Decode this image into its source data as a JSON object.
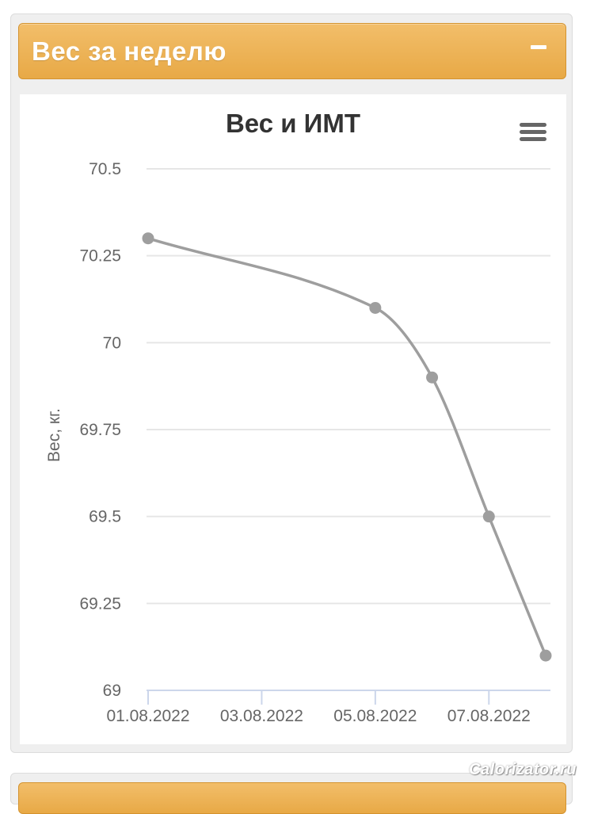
{
  "panel": {
    "title": "Вес за неделю",
    "collapse_icon": "minus-icon"
  },
  "chart_menu_icon": "hamburger-menu-icon",
  "watermark": "Calorizator.ru",
  "colors": {
    "header": "#eeb256",
    "line": "#9e9e9e",
    "grid": "#e6e6e6"
  },
  "chart_data": {
    "type": "line",
    "title": "Вес и ИМТ",
    "xlabel": "",
    "ylabel": "Вес, кг.",
    "x_ticks": [
      "01.08.2022",
      "03.08.2022",
      "05.08.2022",
      "07.08.2022"
    ],
    "xlim": [
      "01.08.2022",
      "08.08.2022"
    ],
    "ylim": [
      69,
      70.5
    ],
    "y_ticks": [
      69,
      69.25,
      69.5,
      69.75,
      70,
      70.25,
      70.5
    ],
    "y_tick_labels": [
      "69",
      "69.25",
      "69.5",
      "69.75",
      "70",
      "70.25",
      "70.5"
    ],
    "smooth": true,
    "grid": true,
    "legend": "none",
    "series": [
      {
        "x": [
          "01.08.2022",
          "05.08.2022",
          "06.08.2022",
          "07.08.2022",
          "08.08.2022"
        ],
        "values": [
          70.3,
          70.1,
          69.9,
          69.5,
          69.1
        ]
      }
    ]
  }
}
